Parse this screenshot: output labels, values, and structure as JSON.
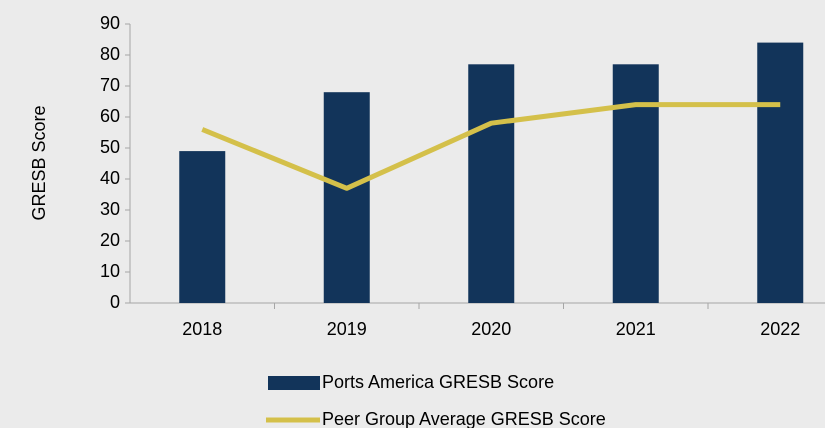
{
  "chart_data": {
    "type": "bar_line",
    "ylabel": "GRESB Score",
    "categories": [
      "2018",
      "2019",
      "2020",
      "2021",
      "2022"
    ],
    "series": [
      {
        "name": "Ports America GRESB Score",
        "type": "bar",
        "color": "#12345a",
        "values": [
          49,
          68,
          77,
          77,
          84
        ]
      },
      {
        "name": "Peer Group Average GRESB Score",
        "type": "line",
        "color": "#d4c04a",
        "values": [
          56,
          37,
          58,
          64,
          64
        ]
      }
    ],
    "ylim": [
      0,
      90
    ],
    "yticks": [
      0,
      10,
      20,
      30,
      40,
      50,
      60,
      70,
      80,
      90
    ],
    "grid": false
  }
}
